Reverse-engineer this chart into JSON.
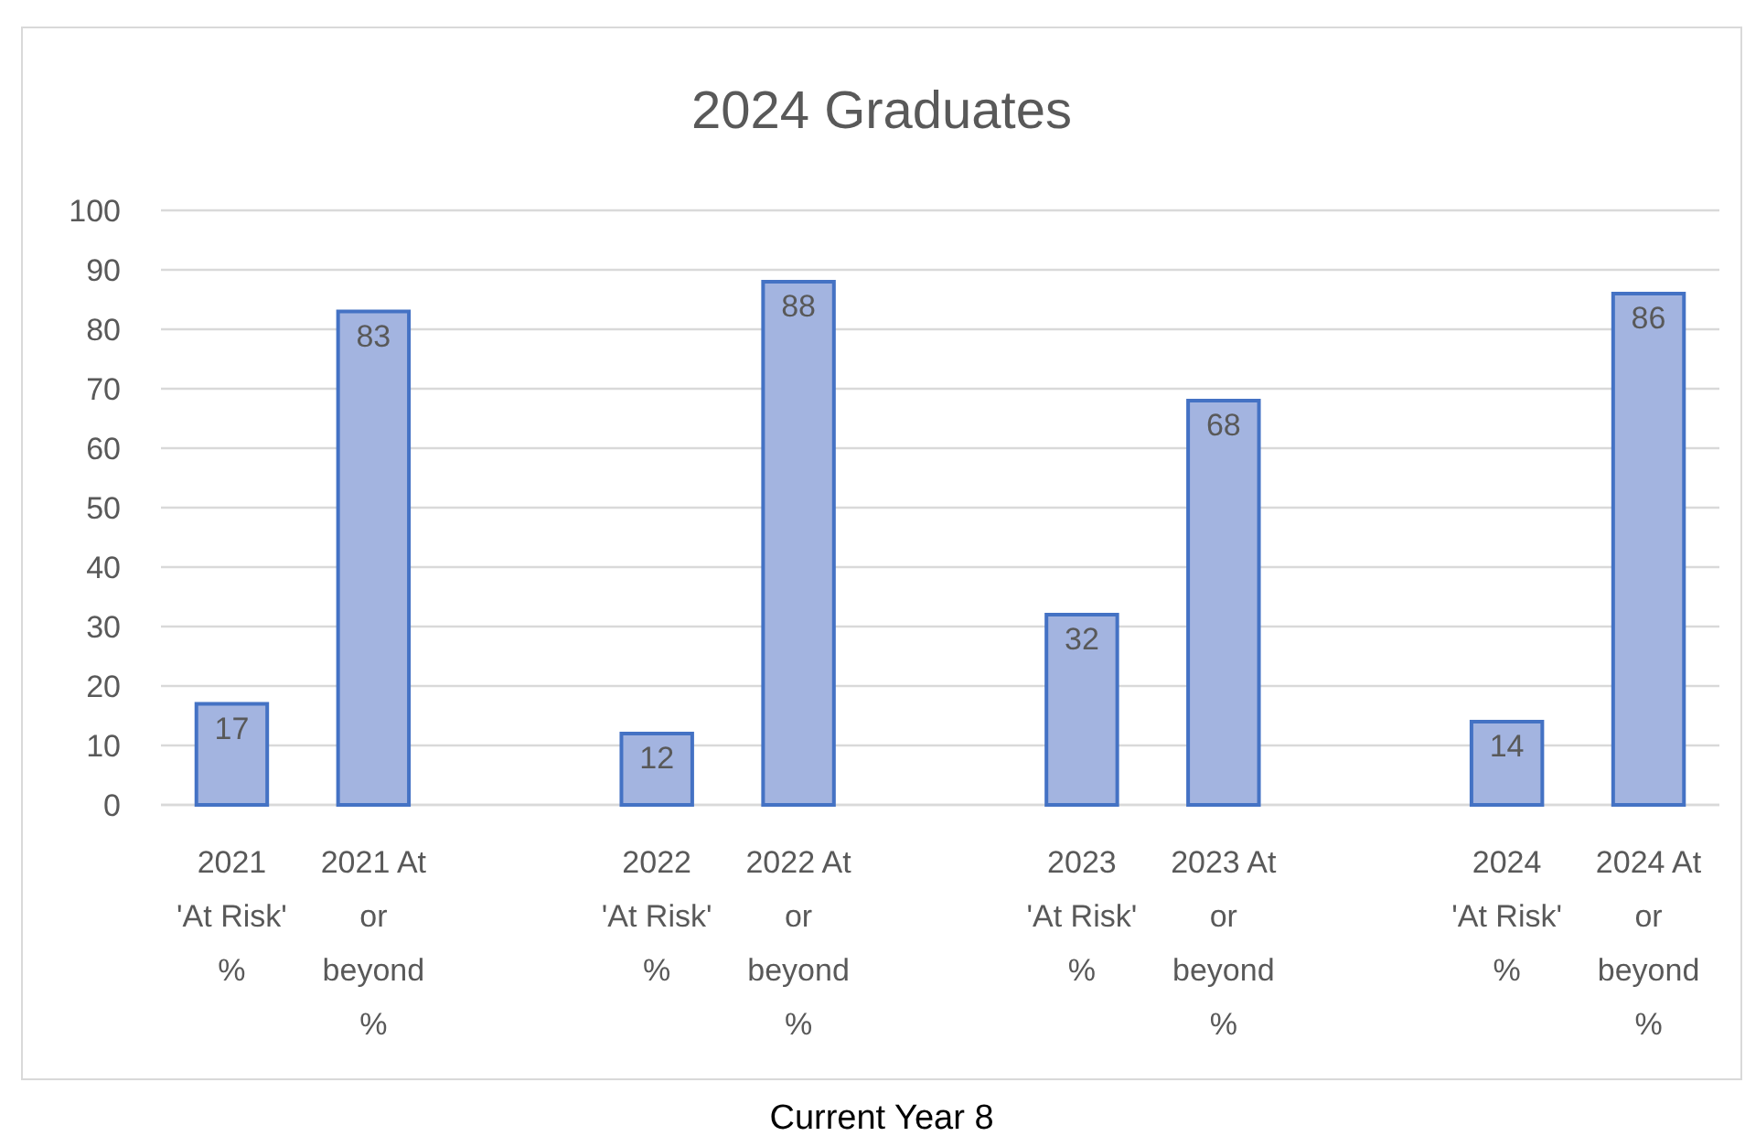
{
  "chart_data": {
    "type": "bar",
    "title": "2024 Graduates",
    "categories": [
      "2021 'At Risk' %",
      "2021 At or beyond %",
      null,
      "2022 'At Risk' %",
      "2022 At or beyond %",
      null,
      "2023 'At Risk' %",
      "2023 At or beyond %",
      null,
      "2024 'At Risk' %",
      "2024 At or beyond %"
    ],
    "values": [
      17,
      83,
      null,
      12,
      88,
      null,
      32,
      68,
      null,
      14,
      86
    ],
    "color": "#a3b4e0",
    "ylim": [
      0,
      100
    ],
    "yticks": [
      0,
      10,
      20,
      30,
      40,
      50,
      60,
      70,
      80,
      90,
      100
    ],
    "grid": "y",
    "data_labels": true,
    "annotations": [
      "Current Year 8"
    ]
  }
}
